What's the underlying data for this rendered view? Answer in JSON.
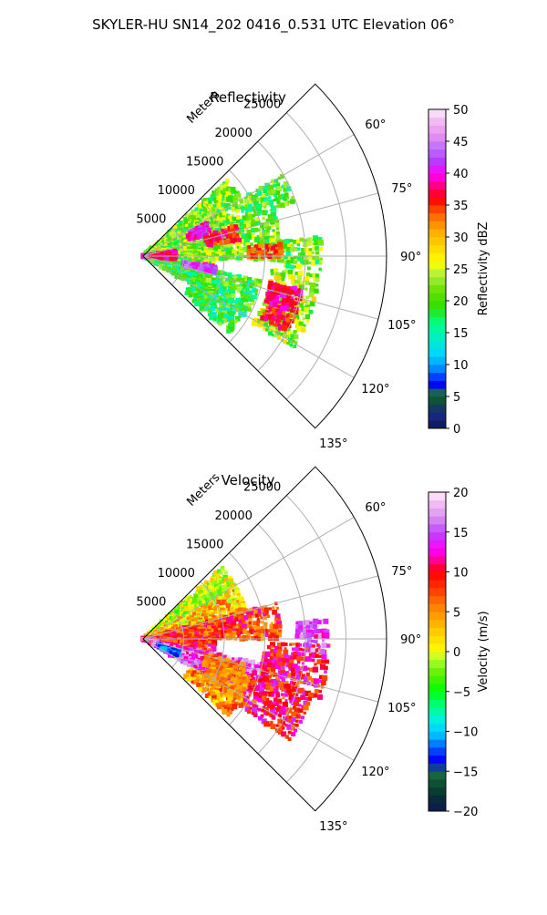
{
  "figure": {
    "suptitle": "SKYLER-HU  SN14_202  0416_0.531 UTC Elevation 06°"
  },
  "chart_data": [
    {
      "type": "heatmap",
      "subtype": "polar-sector",
      "title": "Reflectivity",
      "radial_axis_label": "Meters",
      "radial_ticks": [
        5000,
        10000,
        15000,
        20000,
        25000
      ],
      "radial_tick_labels": [
        "5000",
        "10000",
        "15000",
        "20000",
        "25000"
      ],
      "radial_range": [
        0,
        30000
      ],
      "angular_range_deg": [
        45,
        135
      ],
      "angular_ticks_deg": [
        60,
        75,
        90,
        105,
        120,
        135
      ],
      "angular_tick_labels": [
        "60°",
        "75°",
        "90°",
        "105°",
        "120°",
        "135°"
      ],
      "grid": true,
      "colorbar": {
        "label": "Reflectivity dBZ",
        "range": [
          0,
          50
        ],
        "ticks": [
          0,
          5,
          10,
          15,
          20,
          25,
          30,
          35,
          40,
          45,
          50
        ],
        "tick_labels": [
          "0",
          "5",
          "10",
          "15",
          "20",
          "25",
          "30",
          "35",
          "40",
          "45",
          "50"
        ]
      },
      "echo_regions": [
        {
          "az": [
            48,
            72
          ],
          "r": [
            0,
            14000
          ],
          "value": 22
        },
        {
          "az": [
            72,
            92
          ],
          "r": [
            0,
            17000
          ],
          "value": 22
        },
        {
          "az": [
            92,
            102
          ],
          "r": [
            0,
            9000
          ],
          "value": 22
        },
        {
          "az": [
            102,
            120
          ],
          "r": [
            0,
            15000
          ],
          "value": 19
        },
        {
          "az": [
            96,
            108
          ],
          "r": [
            16000,
            22000
          ],
          "value": 24
        },
        {
          "az": [
            108,
            122
          ],
          "r": [
            16000,
            22000
          ],
          "value": 23
        },
        {
          "az": [
            120,
            132
          ],
          "r": [
            7000,
            14000
          ],
          "value": 18
        },
        {
          "az": [
            84,
            94
          ],
          "r": [
            17000,
            22000
          ],
          "value": 21
        },
        {
          "az": [
            60,
            70
          ],
          "r": [
            14000,
            20000
          ],
          "value": 20
        }
      ],
      "cores": [
        {
          "az": [
            62,
            70
          ],
          "r": [
            6000,
            9000
          ],
          "value": 40
        },
        {
          "az": [
            72,
            80
          ],
          "r": [
            8000,
            12000
          ],
          "value": 36
        },
        {
          "az": [
            98,
            104
          ],
          "r": [
            5000,
            9000
          ],
          "value": 42
        },
        {
          "az": [
            102,
            110
          ],
          "r": [
            16000,
            20000
          ],
          "value": 38
        },
        {
          "az": [
            112,
            118
          ],
          "r": [
            16500,
            20000
          ],
          "value": 36
        },
        {
          "az": [
            80,
            95
          ],
          "r": [
            0,
            4000
          ],
          "value": 38
        },
        {
          "az": [
            85,
            90
          ],
          "r": [
            13000,
            17000
          ],
          "value": 34
        }
      ]
    },
    {
      "type": "heatmap",
      "subtype": "polar-sector",
      "title": "Velocity",
      "radial_axis_label": "Meters",
      "radial_ticks": [
        5000,
        10000,
        15000,
        20000,
        25000
      ],
      "radial_tick_labels": [
        "5000",
        "10000",
        "15000",
        "20000",
        "25000"
      ],
      "radial_range": [
        0,
        30000
      ],
      "angular_range_deg": [
        45,
        135
      ],
      "angular_ticks_deg": [
        60,
        75,
        90,
        105,
        120,
        135
      ],
      "angular_tick_labels": [
        "60°",
        "75°",
        "90°",
        "105°",
        "120°",
        "135°"
      ],
      "grid": true,
      "colorbar": {
        "label": "Velocity (m/s)",
        "range": [
          -20,
          20
        ],
        "ticks": [
          -20,
          -15,
          -10,
          -5,
          0,
          5,
          10,
          15,
          20
        ],
        "tick_labels": [
          "−20",
          "−15",
          "−10",
          "−5",
          "0",
          "5",
          "10",
          "15",
          "20"
        ]
      },
      "echo_regions": [
        {
          "az": [
            48,
            62
          ],
          "r": [
            0,
            13000
          ],
          "value": 0
        },
        {
          "az": [
            62,
            75
          ],
          "r": [
            0,
            13000
          ],
          "value": 3
        },
        {
          "az": [
            75,
            90
          ],
          "r": [
            0,
            17000
          ],
          "value": 8
        },
        {
          "az": [
            90,
            102
          ],
          "r": [
            0,
            9000
          ],
          "value": 9
        },
        {
          "az": [
            102,
            120
          ],
          "r": [
            0,
            15000
          ],
          "value": 15
        },
        {
          "az": [
            92,
            108
          ],
          "r": [
            15000,
            23000
          ],
          "value": 10
        },
        {
          "az": [
            108,
            124
          ],
          "r": [
            14000,
            22000
          ],
          "value": 10
        },
        {
          "az": [
            120,
            132
          ],
          "r": [
            7000,
            14000
          ],
          "value": 5
        },
        {
          "az": [
            84,
            94
          ],
          "r": [
            20000,
            23000
          ],
          "value": 15
        }
      ],
      "cores": [
        {
          "az": [
            52,
            60
          ],
          "r": [
            7000,
            12000
          ],
          "value": -1
        },
        {
          "az": [
            108,
            116
          ],
          "r": [
            2000,
            5000
          ],
          "value": -12
        },
        {
          "az": [
            104,
            112
          ],
          "r": [
            8000,
            13000
          ],
          "value": 6
        },
        {
          "az": [
            110,
            122
          ],
          "r": [
            9000,
            14000
          ],
          "value": 5
        },
        {
          "az": [
            84,
            90
          ],
          "r": [
            19000,
            22000
          ],
          "value": 15
        }
      ]
    }
  ]
}
